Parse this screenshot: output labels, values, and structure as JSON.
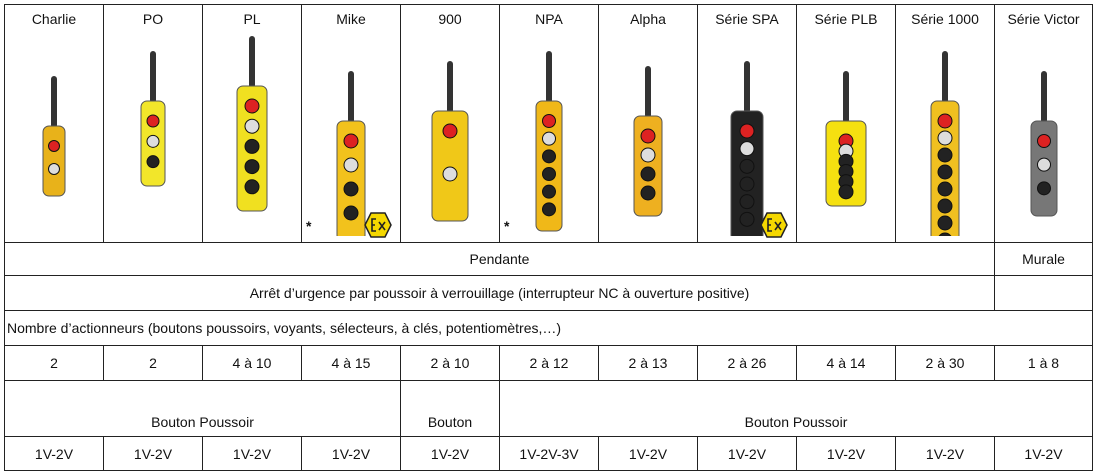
{
  "products": [
    {
      "name": "Charlie"
    },
    {
      "name": "PO"
    },
    {
      "name": "PL"
    },
    {
      "name": "Mike",
      "mark": "*"
    },
    {
      "name": "900"
    },
    {
      "name": "NPA",
      "mark": "*"
    },
    {
      "name": "Alpha"
    },
    {
      "name": "Série SPA"
    },
    {
      "name": "Série PLB"
    },
    {
      "name": "Série 1000"
    },
    {
      "name": "Série Victor"
    }
  ],
  "mounting": [
    "Pendante",
    "Murale"
  ],
  "stop": "Arrêt d’urgence par poussoir à verrouillage (interrupteur NC à ouverture positive)",
  "actuators_title": "Nombre d’actionneurs (boutons poussoirs, voyants, sélecteurs, à clés, potentiomètres,…)",
  "actuators": [
    "2",
    "2",
    "4 à 10",
    "4 à 15",
    "2 à 10",
    "2 à 12",
    "2 à 13",
    "2 à 26",
    "4 à 14",
    "2 à 30",
    "1 à 8"
  ],
  "button_type": [
    "Bouton Poussoir",
    "Bouton",
    "Bouton Poussoir"
  ],
  "voltage": [
    "1V-2V",
    "1V-2V",
    "1V-2V",
    "1V-2V",
    "1V-2V",
    "1V-2V-3V",
    "1V-2V",
    "1V-2V",
    "1V-2V",
    "1V-2V",
    "1V-2V"
  ]
}
